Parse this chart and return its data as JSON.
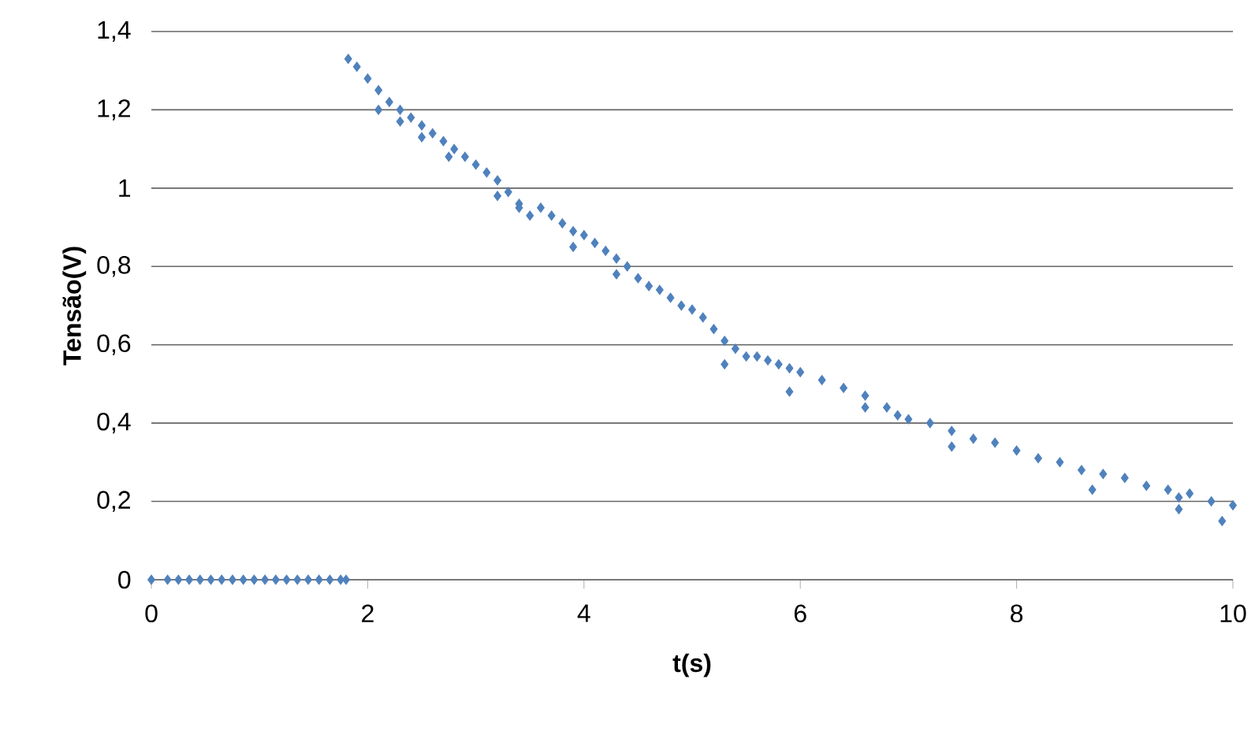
{
  "chart_data": {
    "type": "scatter",
    "xlabel": "t(s)",
    "ylabel": "Tensão(V)",
    "xlim": [
      0,
      10
    ],
    "ylim": [
      0,
      1.4
    ],
    "xticks": [
      0,
      2,
      4,
      6,
      8,
      10
    ],
    "yticks": [
      0,
      {
        "value": 0.2,
        "label": "0,2"
      },
      {
        "value": 0.4,
        "label": "0,4"
      },
      {
        "value": 0.6,
        "label": "0,6"
      },
      {
        "value": 0.8,
        "label": "0,8"
      },
      1,
      {
        "value": 1.2,
        "label": "1,2"
      },
      {
        "value": 1.4,
        "label": "1,4"
      }
    ],
    "grid": "y",
    "marker": "diamond",
    "series": [
      {
        "color": "#4f81bd",
        "x": [
          0,
          0.15,
          0.25,
          0.35,
          0.45,
          0.55,
          0.65,
          0.75,
          0.85,
          0.95,
          1.05,
          1.15,
          1.25,
          1.35,
          1.45,
          1.55,
          1.65,
          1.75,
          1.8,
          1.82,
          1.9,
          2.0,
          2.1,
          2.2,
          2.3,
          2.4,
          2.5,
          2.6,
          2.7,
          2.8,
          2.9,
          3.0,
          3.1,
          3.2,
          3.3,
          3.4,
          3.5,
          3.6,
          3.7,
          3.8,
          3.9,
          4.0,
          4.1,
          4.2,
          4.3,
          4.4,
          4.5,
          4.6,
          4.7,
          4.8,
          4.9,
          5.0,
          5.1,
          5.2,
          5.3,
          5.4,
          5.5,
          5.6,
          5.7,
          5.8,
          5.9,
          6.0,
          6.2,
          6.4,
          6.6,
          6.8,
          6.9,
          7.0,
          7.2,
          7.4,
          7.6,
          7.8,
          8.0,
          8.2,
          8.4,
          8.6,
          8.8,
          9.0,
          9.2,
          9.4,
          9.5,
          9.6,
          9.8,
          10.0,
          2.1,
          2.3,
          2.5,
          2.75,
          3.2,
          3.4,
          3.9,
          4.3,
          5.3,
          5.9,
          6.6,
          7.4,
          8.7,
          9.5,
          9.9
        ],
        "values": [
          0,
          0,
          0,
          0,
          0,
          0,
          0,
          0,
          0,
          0,
          0,
          0,
          0,
          0,
          0,
          0,
          0,
          0,
          0,
          1.33,
          1.31,
          1.28,
          1.25,
          1.22,
          1.2,
          1.18,
          1.16,
          1.14,
          1.12,
          1.1,
          1.08,
          1.06,
          1.04,
          1.02,
          0.99,
          0.96,
          0.93,
          0.95,
          0.93,
          0.91,
          0.89,
          0.88,
          0.86,
          0.84,
          0.82,
          0.8,
          0.77,
          0.75,
          0.74,
          0.72,
          0.7,
          0.69,
          0.67,
          0.64,
          0.61,
          0.59,
          0.57,
          0.57,
          0.56,
          0.55,
          0.54,
          0.53,
          0.51,
          0.49,
          0.47,
          0.44,
          0.42,
          0.41,
          0.4,
          0.38,
          0.36,
          0.35,
          0.33,
          0.31,
          0.3,
          0.28,
          0.27,
          0.26,
          0.24,
          0.23,
          0.21,
          0.22,
          0.2,
          0.19,
          1.2,
          1.17,
          1.13,
          1.08,
          0.98,
          0.95,
          0.85,
          0.78,
          0.55,
          0.48,
          0.44,
          0.34,
          0.23,
          0.18,
          0.15
        ]
      }
    ]
  }
}
